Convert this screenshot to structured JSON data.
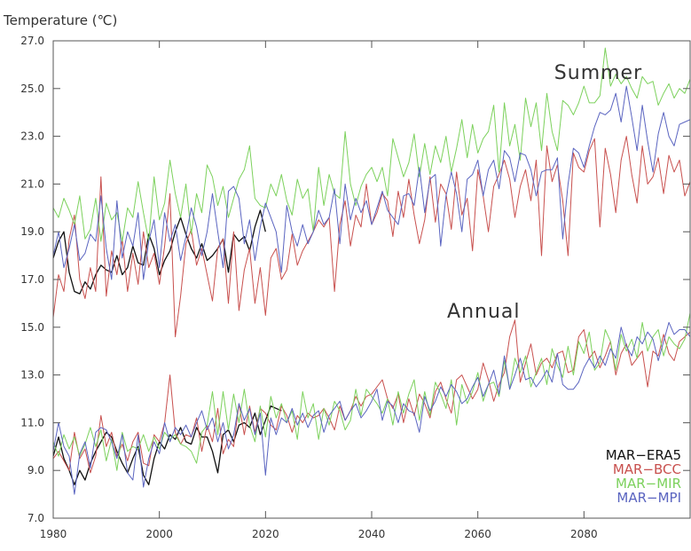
{
  "chart_data": {
    "type": "line",
    "ylabel": "Temperature (℃)",
    "xlim": [
      1980,
      2100
    ],
    "ylim": [
      7.0,
      27.0
    ],
    "x_ticks": [
      1980,
      2000,
      2020,
      2040,
      2060,
      2080
    ],
    "y_ticks": [
      7.0,
      9.0,
      11.0,
      13.0,
      15.0,
      17.0,
      19.0,
      21.0,
      23.0,
      25.0,
      27.0
    ],
    "y_tick_labels": [
      "7.0",
      "9.0",
      "11.0",
      "13.0",
      "15.0",
      "17.0",
      "19.0",
      "21.0",
      "23.0",
      "25.0",
      "27.0"
    ],
    "grid": false,
    "legend_position": "bottom-right",
    "annotations": [
      {
        "text": "Summer",
        "x": 2091,
        "y": 25.4
      },
      {
        "text": "Annual",
        "x": 2068,
        "y": 15.4
      }
    ],
    "series": [
      {
        "name": "MAR−ERA5",
        "group": "summer",
        "color": "#111111",
        "x_start": 1980,
        "values": [
          17.9,
          18.6,
          19.0,
          17.3,
          16.5,
          16.4,
          16.9,
          16.6,
          17.2,
          17.6,
          17.4,
          17.3,
          18.0,
          17.2,
          17.5,
          18.4,
          17.7,
          17.6,
          18.9,
          18.3,
          17.2,
          17.8,
          18.2,
          19.0,
          19.6,
          18.9,
          18.3,
          17.9,
          18.5,
          17.8,
          18.0,
          18.3,
          18.7,
          17.3,
          18.9,
          18.6,
          18.8,
          18.2,
          19.2,
          19.9,
          19.0
        ]
      },
      {
        "name": "MAR−BCC",
        "group": "summer",
        "color": "#c8504e",
        "x_start": 1980,
        "values": [
          15.4,
          17.2,
          16.5,
          18.7,
          19.7,
          17.0,
          16.2,
          17.5,
          16.5,
          21.3,
          16.3,
          18.2,
          17.2,
          18.7,
          16.5,
          18.1,
          16.8,
          19.0,
          17.5,
          18.1,
          16.8,
          18.4,
          20.6,
          14.6,
          16.3,
          18.5,
          19.1,
          17.6,
          18.3,
          17.2,
          16.1,
          18.3,
          18.7,
          16.0,
          19.0,
          15.7,
          17.4,
          18.3,
          16.0,
          17.5,
          15.5,
          17.9,
          18.3,
          17.0,
          17.4,
          18.9,
          17.6,
          18.2,
          18.6,
          19.0,
          19.5,
          19.2,
          19.6,
          16.5,
          19.3,
          20.3,
          18.4,
          19.7,
          19.2,
          21.0,
          19.3,
          19.8,
          20.6,
          20.3,
          18.8,
          20.7,
          19.6,
          21.2,
          19.7,
          18.5,
          19.5,
          21.3,
          19.4,
          21.0,
          20.6,
          19.1,
          21.5,
          19.7,
          20.4,
          18.2,
          21.6,
          20.5,
          19.0,
          20.9,
          21.4,
          22.0,
          21.2,
          19.6,
          20.9,
          21.6,
          20.3,
          22.0,
          18.0,
          22.6,
          21.1,
          21.8,
          20.3,
          18.0,
          22.3,
          21.7,
          21.5,
          22.4,
          22.9,
          19.2,
          22.5,
          21.4,
          19.8,
          22.0,
          23.0,
          21.4,
          20.2,
          22.6,
          21.0,
          21.3,
          22.1,
          20.6,
          22.2,
          21.5,
          22.0,
          20.5,
          21.1
        ]
      },
      {
        "name": "MAR−MIR",
        "group": "summer",
        "color": "#7cd15c",
        "x_start": 1980,
        "values": [
          20.0,
          19.6,
          20.4,
          19.9,
          19.3,
          20.5,
          18.7,
          19.1,
          20.4,
          18.6,
          20.2,
          19.5,
          19.8,
          18.6,
          20.0,
          19.6,
          21.1,
          19.8,
          18.6,
          21.3,
          19.5,
          20.2,
          22.0,
          20.6,
          19.6,
          21.0,
          18.9,
          20.6,
          19.8,
          21.8,
          21.3,
          20.1,
          20.9,
          19.6,
          20.4,
          21.2,
          21.6,
          22.6,
          20.4,
          20.1,
          20.0,
          21.0,
          20.5,
          21.4,
          20.3,
          19.7,
          21.2,
          20.4,
          20.8,
          19.0,
          21.7,
          20.1,
          21.4,
          20.6,
          20.4,
          23.2,
          21.0,
          20.1,
          20.9,
          21.4,
          21.7,
          21.1,
          21.7,
          20.5,
          22.9,
          22.1,
          21.3,
          21.9,
          23.1,
          21.3,
          22.7,
          21.4,
          22.6,
          21.9,
          23.0,
          21.5,
          22.5,
          23.7,
          22.1,
          23.5,
          22.3,
          22.9,
          23.2,
          24.3,
          21.5,
          24.4,
          22.6,
          23.5,
          22.0,
          24.6,
          23.4,
          24.4,
          22.4,
          24.8,
          23.2,
          22.4,
          24.5,
          24.3,
          23.9,
          24.4,
          25.1,
          24.4,
          24.4,
          24.7,
          26.7,
          25.1,
          25.6,
          25.2,
          25.5,
          25.0,
          24.6,
          25.5,
          25.2,
          25.3,
          24.3,
          24.8,
          25.2,
          24.6,
          25.0,
          24.8,
          25.4
        ]
      },
      {
        "name": "MAR−MPI",
        "group": "summer",
        "color": "#5a64c0",
        "x_start": 1980,
        "values": [
          18.0,
          19.0,
          17.5,
          18.3,
          19.3,
          17.8,
          18.1,
          18.9,
          18.6,
          20.5,
          18.3,
          17.0,
          20.3,
          17.9,
          19.0,
          18.4,
          19.8,
          17.0,
          18.6,
          19.5,
          17.5,
          19.8,
          18.6,
          19.3,
          17.8,
          18.8,
          20.0,
          19.2,
          18.0,
          19.0,
          20.6,
          19.0,
          17.5,
          20.7,
          20.9,
          20.4,
          18.5,
          19.5,
          17.8,
          19.2,
          20.2,
          19.6,
          19.0,
          17.3,
          20.1,
          19.0,
          18.4,
          19.3,
          18.5,
          19.0,
          19.9,
          19.3,
          19.6,
          20.8,
          18.5,
          21.0,
          19.5,
          20.4,
          19.8,
          20.3,
          19.3,
          20.0,
          20.7,
          19.9,
          19.6,
          19.3,
          20.5,
          20.6,
          20.1,
          21.7,
          19.8,
          21.2,
          21.4,
          18.4,
          20.5,
          21.5,
          20.6,
          19.0,
          21.2,
          21.4,
          22.0,
          20.5,
          21.6,
          22.0,
          20.8,
          22.4,
          22.1,
          21.1,
          22.3,
          22.2,
          21.6,
          20.5,
          21.5,
          21.6,
          21.6,
          22.1,
          18.7,
          21.0,
          22.5,
          22.3,
          21.7,
          22.6,
          23.4,
          24.0,
          23.9,
          24.1,
          24.8,
          23.6,
          25.1,
          23.8,
          22.4,
          24.3,
          22.8,
          21.5,
          23.1,
          24.0,
          23.0,
          22.6,
          23.5,
          23.6,
          23.7
        ]
      },
      {
        "name": "MAR−ERA5",
        "group": "annual",
        "color": "#111111",
        "x_start": 1980,
        "values": [
          9.6,
          10.4,
          9.5,
          9.0,
          8.4,
          9.0,
          8.6,
          9.3,
          9.8,
          10.2,
          10.6,
          10.4,
          9.8,
          9.3,
          8.9,
          9.5,
          10.0,
          8.8,
          8.4,
          9.5,
          10.2,
          9.9,
          10.5,
          10.3,
          10.8,
          10.2,
          10.1,
          10.8,
          10.4,
          10.4,
          9.8,
          8.9,
          10.5,
          10.7,
          10.2,
          10.9,
          11.0,
          10.8,
          11.4,
          10.5,
          11.1,
          11.7,
          11.6,
          11.5
        ]
      },
      {
        "name": "MAR−BCC",
        "group": "annual",
        "color": "#c8504e",
        "x_start": 1980,
        "values": [
          9.5,
          9.8,
          9.4,
          9.0,
          10.6,
          9.5,
          9.9,
          8.9,
          9.6,
          11.3,
          10.0,
          10.6,
          9.6,
          10.1,
          9.4,
          10.2,
          10.6,
          9.3,
          9.2,
          10.5,
          10.2,
          11.0,
          13.0,
          10.6,
          10.1,
          10.5,
          10.4,
          11.2,
          9.8,
          10.9,
          10.2,
          11.6,
          9.7,
          10.3,
          10.0,
          11.8,
          10.5,
          11.7,
          10.6,
          11.6,
          11.4,
          10.9,
          10.7,
          11.7,
          11.3,
          10.6,
          11.3,
          11.0,
          11.4,
          11.2,
          11.3,
          11.6,
          11.2,
          10.7,
          11.7,
          11.1,
          11.5,
          12.1,
          11.7,
          12.1,
          12.2,
          12.5,
          12.8,
          12.0,
          11.6,
          12.2,
          11.0,
          12.0,
          11.3,
          12.2,
          11.8,
          11.2,
          12.3,
          12.7,
          12.0,
          11.4,
          12.8,
          13.0,
          12.5,
          12.0,
          12.4,
          13.5,
          12.8,
          11.9,
          12.6,
          13.1,
          14.6,
          15.3,
          12.7,
          13.5,
          14.3,
          13.0,
          13.5,
          13.7,
          13.3,
          13.9,
          14.0,
          13.1,
          13.2,
          14.6,
          14.9,
          13.7,
          14.0,
          13.3,
          13.8,
          14.4,
          13.0,
          13.9,
          14.3,
          13.4,
          13.7,
          14.0,
          12.5,
          14.0,
          13.8,
          14.7,
          13.9,
          13.6,
          14.4,
          14.6,
          14.8
        ]
      },
      {
        "name": "MAR−MIR",
        "group": "annual",
        "color": "#7cd15c",
        "x_start": 1980,
        "values": [
          10.2,
          9.6,
          10.5,
          9.9,
          10.4,
          9.6,
          10.1,
          10.8,
          10.0,
          10.7,
          9.4,
          10.3,
          9.0,
          10.6,
          9.8,
          10.0,
          9.9,
          10.5,
          9.8,
          10.4,
          9.9,
          10.6,
          10.3,
          10.5,
          10.1,
          10.0,
          9.8,
          9.3,
          10.6,
          10.9,
          12.3,
          10.5,
          12.3,
          10.7,
          12.2,
          11.0,
          12.4,
          10.9,
          10.2,
          11.7,
          10.4,
          12.1,
          11.2,
          11.8,
          11.0,
          11.5,
          10.3,
          12.3,
          11.2,
          11.8,
          10.3,
          11.6,
          10.9,
          11.9,
          11.5,
          10.7,
          11.1,
          12.4,
          11.3,
          12.4,
          12.1,
          11.8,
          11.4,
          12.0,
          10.9,
          12.3,
          11.4,
          12.2,
          12.8,
          11.1,
          12.3,
          11.3,
          12.7,
          12.2,
          11.6,
          12.8,
          10.9,
          12.6,
          11.8,
          12.3,
          13.1,
          11.9,
          12.6,
          12.7,
          12.1,
          13.6,
          12.4,
          13.7,
          13.1,
          13.8,
          12.5,
          13.1,
          13.7,
          12.6,
          14.1,
          13.4,
          12.9,
          14.2,
          13.0,
          14.4,
          13.9,
          14.8,
          13.2,
          13.5,
          14.9,
          14.4,
          13.2,
          14.7,
          14.0,
          14.5,
          13.7,
          15.2,
          14.0,
          14.6,
          14.9,
          13.8,
          14.6,
          14.3,
          14.1,
          14.5,
          15.6
        ]
      },
      {
        "name": "MAR−MPI",
        "group": "annual",
        "color": "#5a64c0",
        "x_start": 1980,
        "values": [
          9.8,
          11.0,
          10.0,
          9.6,
          8.0,
          9.7,
          10.2,
          9.1,
          10.6,
          10.8,
          10.7,
          10.2,
          9.5,
          10.5,
          8.9,
          8.6,
          10.5,
          8.3,
          9.5,
          10.2,
          9.7,
          11.0,
          10.2,
          10.8,
          10.5,
          10.9,
          10.4,
          11.0,
          11.5,
          10.7,
          11.2,
          10.2,
          11.0,
          9.9,
          10.5,
          11.8,
          11.1,
          11.6,
          10.5,
          11.4,
          8.8,
          11.2,
          10.5,
          11.2,
          11.0,
          11.6,
          10.9,
          11.4,
          10.8,
          11.3,
          11.5,
          10.6,
          11.3,
          11.6,
          11.9,
          11.1,
          11.5,
          11.8,
          11.2,
          11.5,
          11.9,
          12.4,
          11.1,
          11.9,
          11.7,
          11.0,
          11.8,
          11.5,
          11.4,
          10.6,
          12.1,
          11.5,
          11.9,
          12.5,
          12.1,
          12.6,
          12.3,
          11.8,
          12.0,
          12.5,
          12.9,
          12.1,
          12.6,
          13.2,
          12.2,
          13.8,
          12.4,
          13.0,
          13.7,
          12.8,
          12.9,
          12.5,
          12.8,
          13.2,
          12.7,
          13.9,
          12.6,
          12.4,
          12.4,
          12.7,
          13.3,
          13.7,
          13.3,
          13.8,
          13.4,
          14.1,
          13.7,
          15.0,
          14.2,
          13.8,
          14.6,
          14.3,
          14.8,
          14.5,
          13.6,
          14.4,
          15.2,
          14.7,
          14.9,
          14.9,
          14.6
        ]
      }
    ]
  }
}
